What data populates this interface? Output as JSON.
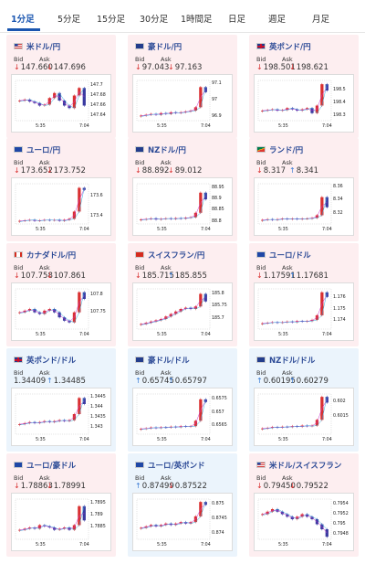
{
  "tabs": [
    {
      "label": "1分足",
      "active": true
    },
    {
      "label": "5分足",
      "active": false
    },
    {
      "label": "15分足",
      "active": false
    },
    {
      "label": "30分足",
      "active": false
    },
    {
      "label": "1時間足",
      "active": false
    },
    {
      "label": "日足",
      "active": false
    },
    {
      "label": "週足",
      "active": false
    },
    {
      "label": "月足",
      "active": false
    }
  ],
  "labels": {
    "bid": "Bid",
    "ask": "Ask"
  },
  "colors": {
    "down_bg": "#fdeef0",
    "up_bg": "#ebf4fc",
    "title": "#2c4a96",
    "tab_active": "#1a56b0",
    "arrow_down": "#d93030",
    "arrow_up": "#3a7bd5",
    "candle_up": "#d93030",
    "candle_down": "#3a3aa0",
    "ma_line": "#cc33cc",
    "ma_line_2": "#33aadd"
  },
  "pairs": [
    {
      "name": "米ドル/円",
      "flag": "us",
      "trend": "down",
      "bid": "147.660",
      "ask": "147.696",
      "bid_dir": "down",
      "ask_dir": "down",
      "chart_data": {
        "type": "candlestick",
        "x_labels": [
          "5:35",
          "7:04"
        ],
        "y_ticks": [
          "147.7",
          "147.68",
          "147.66",
          "147.64"
        ],
        "ylim": [
          147.63,
          147.71
        ],
        "closes": [
          147.67,
          147.672,
          147.668,
          147.665,
          147.66,
          147.662,
          147.675,
          147.685,
          147.67,
          147.66,
          147.655,
          147.68,
          147.695,
          147.66
        ]
      }
    },
    {
      "name": "豪ドル/円",
      "flag": "au",
      "trend": "down",
      "bid": "97.043",
      "ask": "97.163",
      "bid_dir": "down",
      "ask_dir": "down",
      "chart_data": {
        "type": "candlestick",
        "x_labels": [
          "5:35",
          "7:04"
        ],
        "y_ticks": [
          "97.1",
          "97",
          "96.9"
        ],
        "ylim": [
          96.88,
          97.12
        ],
        "closes": [
          96.91,
          96.915,
          96.92,
          96.915,
          96.925,
          96.92,
          96.93,
          96.925,
          96.93,
          96.935,
          96.94,
          96.96,
          97.08,
          97.05
        ]
      }
    },
    {
      "name": "英ポンド/円",
      "flag": "uk",
      "trend": "down",
      "bid": "198.501",
      "ask": "198.621",
      "bid_dir": "down",
      "ask_dir": "down",
      "chart_data": {
        "type": "candlestick",
        "x_labels": [
          "5:35",
          "7:04"
        ],
        "y_ticks": [
          "198.5",
          "198.4",
          "198.3"
        ],
        "ylim": [
          198.26,
          198.58
        ],
        "closes": [
          198.34,
          198.345,
          198.35,
          198.34,
          198.345,
          198.36,
          198.35,
          198.34,
          198.35,
          198.36,
          198.32,
          198.38,
          198.55,
          198.5
        ]
      }
    },
    {
      "name": "ユーロ/円",
      "flag": "eu",
      "trend": "down",
      "bid": "173.652",
      "ask": "173.752",
      "bid_dir": "down",
      "ask_dir": "down",
      "chart_data": {
        "type": "candlestick",
        "x_labels": [
          "5:35",
          "7:04"
        ],
        "y_ticks": [
          "173.6",
          "173.4"
        ],
        "ylim": [
          173.33,
          173.72
        ],
        "closes": [
          173.36,
          173.365,
          173.37,
          173.36,
          173.365,
          173.37,
          173.365,
          173.37,
          173.36,
          173.37,
          173.38,
          173.45,
          173.68,
          173.66
        ]
      }
    },
    {
      "name": "NZドル/円",
      "flag": "nz",
      "trend": "down",
      "bid": "88.892",
      "ask": "89.012",
      "bid_dir": "down",
      "ask_dir": "down",
      "chart_data": {
        "type": "candlestick",
        "x_labels": [
          "5:35",
          "7:04"
        ],
        "y_ticks": [
          "88.95",
          "88.9",
          "88.85",
          "88.8"
        ],
        "ylim": [
          88.79,
          88.97
        ],
        "closes": [
          88.81,
          88.812,
          88.815,
          88.81,
          88.813,
          88.815,
          88.812,
          88.816,
          88.814,
          88.818,
          88.82,
          88.84,
          88.93,
          88.9
        ]
      }
    },
    {
      "name": "ランド/円",
      "flag": "za",
      "trend": "down",
      "bid": "8.317",
      "ask": "8.341",
      "bid_dir": "down",
      "ask_dir": "up",
      "chart_data": {
        "type": "candlestick",
        "x_labels": [
          "5:35",
          "7:04"
        ],
        "y_ticks": [
          "8.36",
          "8.34",
          "8.32"
        ],
        "ylim": [
          8.305,
          8.365
        ],
        "closes": [
          8.311,
          8.312,
          8.311,
          8.312,
          8.313,
          8.312,
          8.313,
          8.312,
          8.313,
          8.313,
          8.314,
          8.318,
          8.345,
          8.33
        ]
      }
    },
    {
      "name": "カナダドル/円",
      "flag": "ca",
      "trend": "down",
      "bid": "107.758",
      "ask": "107.861",
      "bid_dir": "down",
      "ask_dir": "down",
      "chart_data": {
        "type": "candlestick",
        "x_labels": [
          "5:35",
          "7:04"
        ],
        "y_ticks": [
          "107.8",
          "107.75"
        ],
        "ylim": [
          107.7,
          107.82
        ],
        "closes": [
          107.75,
          107.755,
          107.76,
          107.75,
          107.745,
          107.755,
          107.76,
          107.75,
          107.735,
          107.725,
          107.72,
          107.75,
          107.81,
          107.79
        ]
      }
    },
    {
      "name": "スイスフラン/円",
      "flag": "ch",
      "trend": "down",
      "bid": "185.715",
      "ask": "185.855",
      "bid_dir": "down",
      "ask_dir": "up",
      "chart_data": {
        "type": "candlestick",
        "x_labels": [
          "5:35",
          "7:04"
        ],
        "y_ticks": [
          "185.8",
          "185.75",
          "185.7"
        ],
        "ylim": [
          185.66,
          185.82
        ],
        "closes": [
          185.68,
          185.685,
          185.69,
          185.695,
          185.7,
          185.71,
          185.72,
          185.73,
          185.74,
          185.745,
          185.74,
          185.75,
          185.8,
          185.77
        ]
      }
    },
    {
      "name": "ユーロ/ドル",
      "flag": "eu",
      "trend": "down",
      "bid": "1.17591",
      "ask": "1.17681",
      "bid_dir": "down",
      "ask_dir": "up",
      "chart_data": {
        "type": "candlestick",
        "x_labels": [
          "5:35",
          "7:04"
        ],
        "y_ticks": [
          "1.176",
          "1.175",
          "1.174"
        ],
        "ylim": [
          1.1733,
          1.1768
        ],
        "closes": [
          1.1738,
          1.17385,
          1.1739,
          1.17385,
          1.1739,
          1.17395,
          1.1739,
          1.174,
          1.17395,
          1.174,
          1.1741,
          1.1745,
          1.1765,
          1.1761
        ]
      }
    },
    {
      "name": "英ポンド/ドル",
      "flag": "uk",
      "trend": "up",
      "bid": "1.34409",
      "ask": "1.34485",
      "bid_dir": "none",
      "ask_dir": "up",
      "chart_data": {
        "type": "candlestick",
        "x_labels": [
          "5:35",
          "7:04"
        ],
        "y_ticks": [
          "1.3445",
          "1.344",
          "1.3435",
          "1.343"
        ],
        "ylim": [
          1.3427,
          1.3447
        ],
        "closes": [
          1.3432,
          1.34325,
          1.3433,
          1.34325,
          1.3433,
          1.34335,
          1.3433,
          1.34335,
          1.3434,
          1.34335,
          1.3434,
          1.3437,
          1.3445,
          1.3442
        ]
      }
    },
    {
      "name": "豪ドル/ドル",
      "flag": "au",
      "trend": "up",
      "bid": "0.65745",
      "ask": "0.65797",
      "bid_dir": "up",
      "ask_dir": "up",
      "chart_data": {
        "type": "candlestick",
        "x_labels": [
          "5:35",
          "7:04"
        ],
        "y_ticks": [
          "0.6575",
          "0.657",
          "0.6565"
        ],
        "ylim": [
          0.6562,
          0.6577
        ],
        "closes": [
          0.6564,
          0.65642,
          0.65645,
          0.65643,
          0.65646,
          0.65645,
          0.65648,
          0.65646,
          0.6565,
          0.65648,
          0.6565,
          0.6567,
          0.6575,
          0.6574
        ]
      }
    },
    {
      "name": "NZドル/ドル",
      "flag": "nz",
      "trend": "up",
      "bid": "0.60195",
      "ask": "0.60279",
      "bid_dir": "up",
      "ask_dir": "up",
      "chart_data": {
        "type": "candlestick",
        "x_labels": [
          "5:35",
          "7:04"
        ],
        "y_ticks": [
          "0.602",
          "0.6015"
        ],
        "ylim": [
          0.6009,
          0.6023
        ],
        "closes": [
          0.6011,
          0.60112,
          0.60115,
          0.60113,
          0.60116,
          0.60115,
          0.60118,
          0.60116,
          0.6012,
          0.60118,
          0.6012,
          0.6014,
          0.6022,
          0.602
        ]
      }
    },
    {
      "name": "ユーロ/豪ドル",
      "flag": "eu",
      "trend": "down",
      "bid": "1.78863",
      "ask": "1.78991",
      "bid_dir": "down",
      "ask_dir": "down",
      "chart_data": {
        "type": "candlestick",
        "x_labels": [
          "5:35",
          "7:04"
        ],
        "y_ticks": [
          "1.7895",
          "1.789",
          "1.7885"
        ],
        "ylim": [
          1.788,
          1.7897
        ],
        "closes": [
          1.7884,
          1.78845,
          1.7885,
          1.78845,
          1.7886,
          1.78855,
          1.7885,
          1.7884,
          1.78845,
          1.7885,
          1.7884,
          1.7886,
          1.7894,
          1.7888
        ]
      }
    },
    {
      "name": "ユーロ/英ポンド",
      "flag": "eu",
      "trend": "up",
      "bid": "0.87499",
      "ask": "0.87522",
      "bid_dir": "up",
      "ask_dir": "down",
      "chart_data": {
        "type": "candlestick",
        "x_labels": [
          "5:35",
          "7:04"
        ],
        "y_ticks": [
          "0.875",
          "0.8745",
          "0.874"
        ],
        "ylim": [
          0.8738,
          0.8752
        ],
        "closes": [
          0.8742,
          0.87425,
          0.8743,
          0.87425,
          0.8743,
          0.87435,
          0.8743,
          0.87435,
          0.8744,
          0.87435,
          0.8744,
          0.8746,
          0.8751,
          0.875
        ]
      }
    },
    {
      "name": "米ドル/スイスフラン",
      "flag": "us",
      "trend": "down",
      "bid": "0.79450",
      "ask": "0.79522",
      "bid_dir": "down",
      "ask_dir": "down",
      "chart_data": {
        "type": "candlestick",
        "x_labels": [
          "5:35",
          "7:04"
        ],
        "y_ticks": [
          "0.7954",
          "0.7952",
          "0.795",
          "0.7948"
        ],
        "ylim": [
          0.7947,
          0.7955
        ],
        "closes": [
          0.7952,
          0.79525,
          0.7953,
          0.79525,
          0.7952,
          0.79515,
          0.7951,
          0.79515,
          0.7952,
          0.79515,
          0.7951,
          0.795,
          0.7949,
          0.79475
        ]
      }
    }
  ]
}
